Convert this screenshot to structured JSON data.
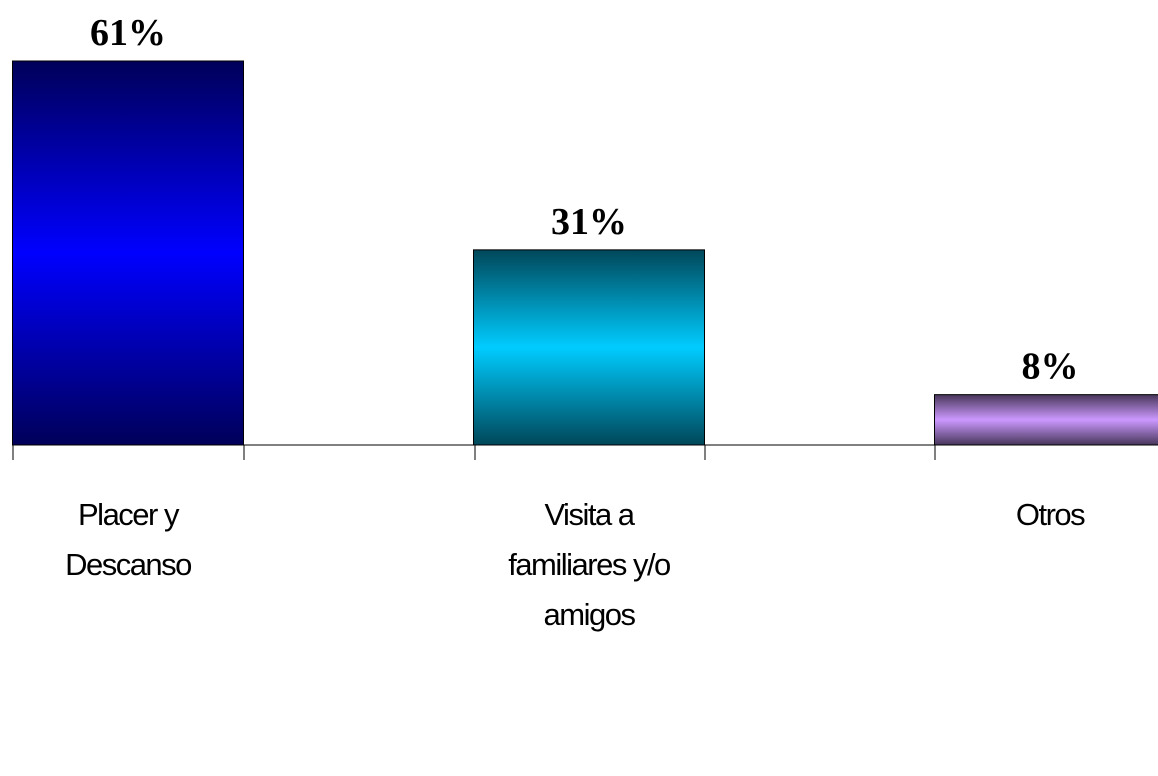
{
  "chart_data": {
    "type": "bar",
    "categories": [
      "Placer y Descanso",
      "Visita a familiares y/o amigos",
      "Otros"
    ],
    "values": [
      61,
      31,
      8
    ],
    "value_labels": [
      "61%",
      "31%",
      "8%"
    ],
    "colors": [
      "#0000ff",
      "#00ccff",
      "#cc99ff"
    ],
    "ylim": [
      0,
      61
    ]
  }
}
